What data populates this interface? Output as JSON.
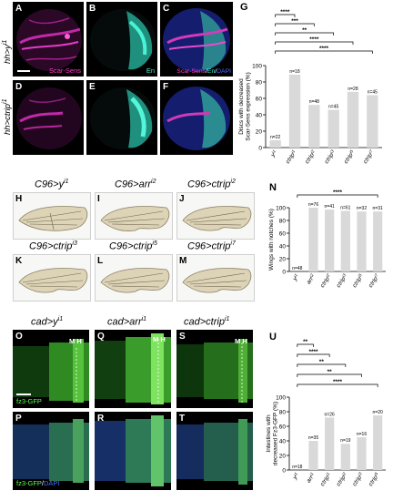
{
  "top": {
    "row_labels": [
      "hh>y",
      "hh>ctrip"
    ],
    "row_label_sups": [
      "i1",
      "i1"
    ],
    "panels": [
      {
        "letter": "A",
        "caption": "Scar-Sens",
        "color": "#ff3ec8"
      },
      {
        "letter": "B",
        "caption": "En",
        "color": "#41f0d0"
      },
      {
        "letter": "C",
        "caption_parts": [
          "Scar-Sens",
          "/",
          "En",
          "/",
          "DAPI"
        ],
        "colors": [
          "#ff3ec8",
          "#ffffff",
          "#41f0d0",
          "#ffffff",
          "#4a6bff"
        ]
      },
      {
        "letter": "D"
      },
      {
        "letter": "E"
      },
      {
        "letter": "F"
      }
    ],
    "chart_letter": "G"
  },
  "middle": {
    "titles": [
      {
        "letter": "H",
        "base": "C96>y",
        "sup": "i1"
      },
      {
        "letter": "I",
        "base": "C96>arr",
        "sup": "i2"
      },
      {
        "letter": "J",
        "base": "C96>ctrip",
        "sup": "i2"
      },
      {
        "letter": "K",
        "base": "C96>ctrip",
        "sup": "i3"
      },
      {
        "letter": "L",
        "base": "C96>ctrip",
        "sup": "i5"
      },
      {
        "letter": "M",
        "base": "C96>ctrip",
        "sup": "i7"
      }
    ],
    "chart_letter": "N"
  },
  "bottom": {
    "titles": [
      {
        "base": "cad>y",
        "sup": "i1"
      },
      {
        "base": "cad>arr",
        "sup": "i1"
      },
      {
        "base": "cad>ctrip",
        "sup": "i1"
      }
    ],
    "panels": [
      "O",
      "Q",
      "S",
      "P",
      "R",
      "T"
    ],
    "mh": "M H",
    "caption_top": "fz3-GFP",
    "caption_bottom_parts": [
      "fz3-GFP",
      "/",
      "DAPI"
    ],
    "chart_letter": "U"
  },
  "chart_data": [
    {
      "type": "bar",
      "ylabel": "Discs with decreased Scar-Sens expression (%)",
      "ylim": [
        0,
        100
      ],
      "yticks": [
        0,
        20,
        40,
        60,
        80,
        100
      ],
      "categories": [
        "y i1",
        "ctrip i1",
        "ctrip i2",
        "ctrip i3",
        "ctrip i5",
        "ctrip i7"
      ],
      "cat_base": [
        "y",
        "ctrip",
        "ctrip",
        "ctrip",
        "ctrip",
        "ctrip"
      ],
      "cat_sup": [
        "i1",
        "i1",
        "i2",
        "i3",
        "i5",
        "i7"
      ],
      "values": [
        9,
        89,
        52,
        46,
        68,
        64
      ],
      "n_labels": [
        "n=22",
        "n=18",
        "n=48",
        "n=45",
        "n=28",
        "n=45"
      ],
      "significance": [
        {
          "from": 0,
          "to": 1,
          "label": "****"
        },
        {
          "from": 0,
          "to": 2,
          "label": "***"
        },
        {
          "from": 0,
          "to": 3,
          "label": "**"
        },
        {
          "from": 0,
          "to": 4,
          "label": "****"
        },
        {
          "from": 0,
          "to": 5,
          "label": "****"
        }
      ],
      "bar_color": "#d9d9d9"
    },
    {
      "type": "bar",
      "ylabel": "Wings with notches (%)",
      "ylim": [
        0,
        100
      ],
      "yticks": [
        0,
        20,
        40,
        60,
        80,
        100
      ],
      "categories": [
        "y i1",
        "arr i2",
        "ctrip i2",
        "ctrip i3",
        "ctrip i5",
        "ctrip i7"
      ],
      "cat_base": [
        "y",
        "arr",
        "ctrip",
        "ctrip",
        "ctrip",
        "ctrip"
      ],
      "cat_sup": [
        "i1",
        "i2",
        "i2",
        "i3",
        "i5",
        "i7"
      ],
      "values": [
        0,
        100,
        97,
        95,
        94,
        94
      ],
      "n_labels": [
        "n=48",
        "n=76",
        "n=41",
        "n=61",
        "n=32",
        "n=31"
      ],
      "significance": [
        {
          "from": 0,
          "to": 5,
          "label": "****"
        }
      ],
      "bar_color": "#d9d9d9"
    },
    {
      "type": "bar",
      "ylabel": "Intestines with decreased Fz3-GFP (%)",
      "ylim": [
        0,
        100
      ],
      "yticks": [
        0,
        20,
        40,
        60,
        80,
        100
      ],
      "categories": [
        "y i1",
        "arr i1",
        "ctrip i1",
        "ctrip i2",
        "ctrip i3",
        "ctrip i5"
      ],
      "cat_base": [
        "y",
        "arr",
        "ctrip",
        "ctrip",
        "ctrip",
        "ctrip"
      ],
      "cat_sup": [
        "i1",
        "i1",
        "i1",
        "i2",
        "i3",
        "i5"
      ],
      "values": [
        0,
        40,
        72,
        36,
        45,
        75
      ],
      "n_labels": [
        "n=18",
        "n=35",
        "n=26",
        "n=19",
        "n=16",
        "n=20"
      ],
      "significance": [
        {
          "from": 0,
          "to": 1,
          "label": "**"
        },
        {
          "from": 0,
          "to": 2,
          "label": "****"
        },
        {
          "from": 0,
          "to": 3,
          "label": "**"
        },
        {
          "from": 0,
          "to": 4,
          "label": "**"
        },
        {
          "from": 0,
          "to": 5,
          "label": "****"
        }
      ],
      "bar_color": "#d9d9d9"
    }
  ]
}
